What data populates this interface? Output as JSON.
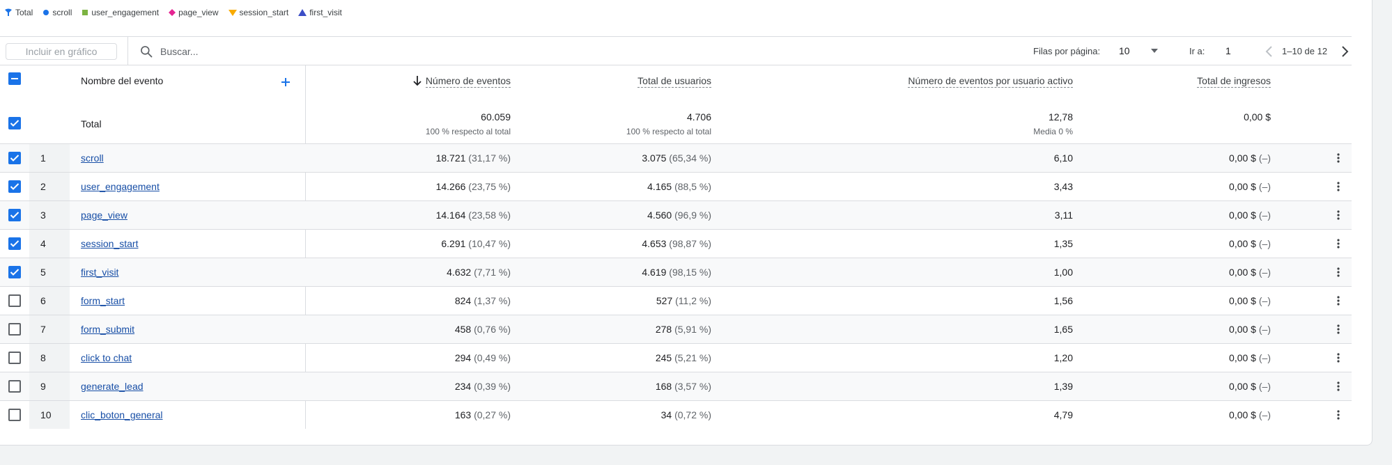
{
  "legend": [
    {
      "label": "Total",
      "icon": "total-marker-icon",
      "color": "#1a73e8"
    },
    {
      "label": "scroll",
      "icon": "circle-marker-icon",
      "color": "#1a73e8"
    },
    {
      "label": "user_engagement",
      "icon": "square-marker-icon",
      "color": "#7cb342"
    },
    {
      "label": "page_view",
      "icon": "diamond-marker-icon",
      "color": "#e52592"
    },
    {
      "label": "session_start",
      "icon": "triangle-down-marker-icon",
      "color": "#f9ab00"
    },
    {
      "label": "first_visit",
      "icon": "triangle-up-marker-icon",
      "color": "#3c4ec6"
    }
  ],
  "toolbar": {
    "include_label": "Incluir en gráfico",
    "search_placeholder": "Buscar...",
    "rows_per_page_label": "Filas por página:",
    "rows_per_page_value": "10",
    "goto_label": "Ir a:",
    "goto_value": "1",
    "range_label": "1–10 de 12"
  },
  "headers": {
    "name": "Nombre del evento",
    "events": "Número de eventos",
    "users": "Total de usuarios",
    "events_per_user": "Número de eventos por usuario activo",
    "revenue": "Total de ingresos"
  },
  "totals": {
    "label": "Total",
    "events": "60.059",
    "events_sub": "100 % respecto al total",
    "users": "4.706",
    "users_sub": "100 % respecto al total",
    "events_per_user": "12,78",
    "events_per_user_sub": "Media 0 %",
    "revenue": "0,00 $"
  },
  "rows": [
    {
      "idx": "1",
      "name": "scroll",
      "checked": true,
      "events": "18.721",
      "events_pct": "(31,17 %)",
      "users": "3.075",
      "users_pct": "(65,34 %)",
      "epu": "6,10",
      "revenue": "0,00 $",
      "revenue_pct": "(–)"
    },
    {
      "idx": "2",
      "name": "user_engagement",
      "checked": true,
      "events": "14.266",
      "events_pct": "(23,75 %)",
      "users": "4.165",
      "users_pct": "(88,5 %)",
      "epu": "3,43",
      "revenue": "0,00 $",
      "revenue_pct": "(–)"
    },
    {
      "idx": "3",
      "name": "page_view",
      "checked": true,
      "events": "14.164",
      "events_pct": "(23,58 %)",
      "users": "4.560",
      "users_pct": "(96,9 %)",
      "epu": "3,11",
      "revenue": "0,00 $",
      "revenue_pct": "(–)"
    },
    {
      "idx": "4",
      "name": "session_start",
      "checked": true,
      "events": "6.291",
      "events_pct": "(10,47 %)",
      "users": "4.653",
      "users_pct": "(98,87 %)",
      "epu": "1,35",
      "revenue": "0,00 $",
      "revenue_pct": "(–)"
    },
    {
      "idx": "5",
      "name": "first_visit",
      "checked": true,
      "events": "4.632",
      "events_pct": "(7,71 %)",
      "users": "4.619",
      "users_pct": "(98,15 %)",
      "epu": "1,00",
      "revenue": "0,00 $",
      "revenue_pct": "(–)"
    },
    {
      "idx": "6",
      "name": "form_start",
      "checked": false,
      "events": "824",
      "events_pct": "(1,37 %)",
      "users": "527",
      "users_pct": "(11,2 %)",
      "epu": "1,56",
      "revenue": "0,00 $",
      "revenue_pct": "(–)"
    },
    {
      "idx": "7",
      "name": "form_submit",
      "checked": false,
      "events": "458",
      "events_pct": "(0,76 %)",
      "users": "278",
      "users_pct": "(5,91 %)",
      "epu": "1,65",
      "revenue": "0,00 $",
      "revenue_pct": "(–)"
    },
    {
      "idx": "8",
      "name": "click to chat",
      "checked": false,
      "events": "294",
      "events_pct": "(0,49 %)",
      "users": "245",
      "users_pct": "(5,21 %)",
      "epu": "1,20",
      "revenue": "0,00 $",
      "revenue_pct": "(–)"
    },
    {
      "idx": "9",
      "name": "generate_lead",
      "checked": false,
      "events": "234",
      "events_pct": "(0,39 %)",
      "users": "168",
      "users_pct": "(3,57 %)",
      "epu": "1,39",
      "revenue": "0,00 $",
      "revenue_pct": "(–)"
    },
    {
      "idx": "10",
      "name": "clic_boton_general",
      "checked": false,
      "events": "163",
      "events_pct": "(0,27 %)",
      "users": "34",
      "users_pct": "(0,72 %)",
      "epu": "4,79",
      "revenue": "0,00 $",
      "revenue_pct": "(–)"
    }
  ],
  "colors": {
    "accent": "#1a73e8",
    "link": "#174ea6",
    "divider": "#dadce0"
  }
}
